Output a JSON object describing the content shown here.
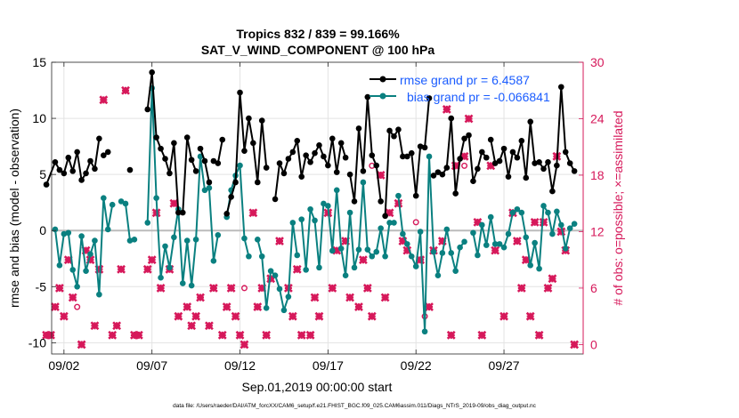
{
  "chart_data": {
    "type": "line",
    "title_line1": "Tropics 832 / 839 = 99.166%",
    "title_line2": "SAT_V_WIND_COMPONENT @ 100 hPa",
    "xlabel": "Sep.01,2019 00:00:00 start",
    "ylabel_left": "rmse and bias (model - observation)",
    "ylabel_right": "# of obs: o=possible; ×=assimilated",
    "footer": "data file: /Users/raeder/DAI/ATM_forcXX/CAM6_setup/f.e21.FHIST_BGC.f09_025.CAM6assim.011/Diags_NTrS_2019-09/obs_diag_output.nc",
    "x_range_days": [
      0.3,
      30.5
    ],
    "x_ticks": [
      {
        "day": 1,
        "label": "09/02"
      },
      {
        "day": 6,
        "label": "09/07"
      },
      {
        "day": 11,
        "label": "09/12"
      },
      {
        "day": 16,
        "label": "09/17"
      },
      {
        "day": 21,
        "label": "09/22"
      },
      {
        "day": 26,
        "label": "09/27"
      }
    ],
    "ylim_left": [
      -11,
      15
    ],
    "ylim_right": [
      -1,
      30
    ],
    "yticks_left": [
      -10,
      -5,
      0,
      5,
      10,
      15
    ],
    "yticks_right": [
      0,
      6,
      12,
      18,
      24,
      30
    ],
    "zero_line": 0,
    "legend": [
      {
        "label": "rmse grand pr = 6.4587",
        "color": "#000000"
      },
      {
        "label": "bias grand pr = -0.066841",
        "color": "#0a8080"
      }
    ],
    "colors": {
      "rmse": "#000000",
      "bias": "#0a8080",
      "obs": "#d6185a",
      "legend_text": "#1a5cff",
      "zero": "#bbbbbb"
    },
    "rmse_series": [
      {
        "name": "seg1",
        "x": [
          0.0,
          0.5,
          0.75,
          1.0,
          1.25,
          1.5,
          1.75,
          2.0,
          2.25,
          2.5,
          2.75,
          3.0
        ],
        "y": [
          4.1,
          6.1,
          5.4,
          5.1,
          6.5,
          5.3,
          7.0,
          4.5,
          5.1,
          6.2,
          5.5,
          8.2
        ]
      },
      {
        "name": "seg2",
        "x": [
          3.25,
          3.5
        ],
        "y": [
          6.7,
          7.0
        ]
      },
      {
        "name": "seg3",
        "x": [
          4.75
        ],
        "y": [
          5.4
        ]
      },
      {
        "name": "seg4",
        "x": [
          5.75,
          6.0,
          6.25,
          6.5,
          6.75,
          7.0,
          7.25,
          7.5,
          7.75,
          8.0,
          8.25,
          8.5
        ],
        "y": [
          10.8,
          14.1,
          8.3,
          7.3,
          6.4,
          5.1,
          7.8,
          1.6,
          1.6,
          8.3,
          6.3,
          5.3
        ]
      },
      {
        "name": "seg5",
        "x": [
          8.75,
          9.0,
          9.25
        ],
        "y": [
          7.3,
          6.2,
          4.3
        ]
      },
      {
        "name": "seg6",
        "x": [
          9.5,
          9.75,
          10.0
        ],
        "y": [
          6.2,
          6.0,
          8.1
        ]
      },
      {
        "name": "seg7",
        "x": [
          10.25,
          10.5,
          10.75,
          11.0,
          11.25,
          11.5,
          11.75,
          12.0,
          12.25,
          12.5
        ],
        "y": [
          1.5,
          3.0,
          4.3,
          12.3,
          7.1,
          10.0,
          7.8,
          4.3,
          9.8,
          5.6
        ]
      },
      {
        "name": "seg8",
        "x": [
          13.0,
          13.25,
          13.5,
          13.75,
          14.0,
          14.25,
          14.5,
          14.75,
          15.0,
          15.25,
          15.5,
          15.75,
          16.0,
          16.25,
          16.5,
          16.75,
          17.0
        ],
        "y": [
          2.8,
          6.0,
          5.1,
          6.4,
          7.0,
          8.0,
          4.8,
          6.7,
          6.1,
          6.9,
          7.6,
          6.6,
          5.8,
          8.2,
          5.2,
          7.8,
          6.5
        ]
      },
      {
        "name": "seg9",
        "x": [
          17.25,
          17.5,
          17.75,
          18.0,
          18.25,
          18.5,
          18.75,
          19.0
        ],
        "y": [
          5.0,
          2.6,
          9.1,
          5.3,
          11.9,
          6.7,
          5.8,
          2.6
        ]
      },
      {
        "name": "seg10",
        "x": [
          19.25,
          19.5,
          19.75,
          20.0,
          20.25
        ],
        "y": [
          1.3,
          8.9,
          8.4,
          9.0,
          6.6
        ]
      },
      {
        "name": "seg11",
        "x": [
          20.5,
          20.75,
          21.0,
          21.25,
          21.5,
          21.75
        ],
        "y": [
          6.6,
          6.9,
          3.1,
          7.5,
          7.4,
          11.8
        ]
      },
      {
        "name": "seg12",
        "x": [
          22.0,
          22.25,
          22.5,
          22.75,
          23.0,
          23.25,
          23.5,
          23.75,
          24.0,
          24.25,
          24.5,
          24.75,
          25.0
        ],
        "y": [
          4.9,
          5.2,
          5.0,
          5.6,
          10.0,
          3.3,
          6.4,
          8.2,
          8.5,
          4.4,
          5.5,
          7.0,
          6.5
        ]
      },
      {
        "name": "seg13",
        "x": [
          25.25,
          25.5,
          25.75,
          26.0,
          26.25,
          26.5,
          26.75,
          27.0,
          27.25,
          27.5,
          27.75,
          28.0,
          28.25,
          28.5,
          28.75,
          29.0,
          29.25,
          29.5,
          29.75,
          30.0
        ],
        "y": [
          8.1,
          6.0,
          6.2,
          7.3,
          4.8,
          7.0,
          6.5,
          8.0,
          4.7,
          9.7,
          6.0,
          6.1,
          5.5,
          6.1,
          3.5,
          5.8,
          12.8,
          7.0,
          6.0,
          5.3
        ]
      }
    ],
    "bias_series": [
      {
        "name": "seg1",
        "x": [
          0.0
        ],
        "y": [
          4.1
        ]
      },
      {
        "name": "seg2",
        "x": [
          0.5,
          0.75,
          1.0,
          1.25,
          1.5,
          1.75,
          2.0,
          2.25,
          2.5,
          2.75,
          3.0,
          3.25,
          3.5,
          3.75
        ],
        "y": [
          0.1,
          -3.1,
          -0.3,
          -0.2,
          -3.5,
          -5.0,
          -0.5,
          -3.6,
          -2.1,
          -0.9,
          -5.7,
          2.9,
          0.1,
          2.3
        ]
      },
      {
        "name": "seg3",
        "x": [
          4.25,
          4.5,
          4.75,
          5.0
        ],
        "y": [
          2.6,
          2.4,
          -0.9,
          -0.8
        ]
      },
      {
        "name": "seg4",
        "x": [
          5.75,
          6.0,
          6.25,
          6.5,
          6.75,
          7.0,
          7.25,
          7.5,
          7.75,
          8.0,
          8.25,
          8.5,
          8.75,
          9.0,
          9.25,
          9.5,
          9.75
        ],
        "y": [
          0.7,
          12.7,
          2.9,
          -4.2,
          -1.4,
          -3.3,
          -0.6,
          1.9,
          -4.7,
          -0.9,
          -4.9,
          -0.8,
          6.6,
          3.6,
          3.8,
          -2.7,
          -0.4
        ]
      },
      {
        "name": "seg4b",
        "x": [
          10.25,
          10.5,
          10.75,
          11.0,
          11.25,
          11.5
        ],
        "y": [
          1.2,
          3.6,
          4.9,
          5.8,
          -0.7,
          -2.3
        ]
      },
      {
        "name": "seg5",
        "x": [
          12.0,
          12.25,
          12.5,
          12.75,
          13.0,
          13.25,
          13.5,
          13.75,
          14.0,
          14.25
        ],
        "y": [
          -0.8,
          -2.3,
          -6.9,
          -3.6,
          -4.0,
          -5.2,
          -7.1,
          -5.9,
          0.7,
          -2.2
        ]
      },
      {
        "name": "seg6",
        "x": [
          14.5,
          14.75,
          15.0,
          15.25,
          15.5,
          15.75,
          16.0,
          16.25,
          16.5,
          16.75,
          17.0,
          17.25,
          17.5,
          17.75,
          18.0,
          18.25,
          18.5,
          18.75,
          19.0,
          19.25,
          19.5,
          19.75
        ],
        "y": [
          1.0,
          -3.5,
          1.9,
          0.9,
          -3.3,
          2.4,
          2.2,
          -1.8,
          3.6,
          -1.6,
          -4.0,
          1.6,
          -3.3,
          -1.7,
          4.3,
          -1.7,
          -2.3,
          -1.9,
          0.2,
          -2.3,
          0.7,
          0.7
        ]
      },
      {
        "name": "seg7",
        "x": [
          20.0,
          20.25,
          20.5,
          20.75,
          21.0,
          21.25,
          21.5,
          21.75,
          22.0,
          22.25,
          22.5,
          22.75,
          23.0,
          23.25,
          23.5,
          23.75
        ],
        "y": [
          3.1,
          -0.3,
          -1.2,
          -2.3,
          -3.2,
          -0.1,
          -9.0,
          6.6,
          -1.9,
          -4.0,
          -2.0,
          0.1,
          -2.0,
          -3.6,
          -1.5,
          -1.0
        ]
      },
      {
        "name": "seg8",
        "x": [
          24.25,
          24.5,
          24.75,
          25.0,
          25.25,
          25.5,
          25.75,
          26.0,
          26.25,
          26.5,
          26.75,
          27.0,
          27.25,
          27.5,
          27.75,
          28.0,
          28.25,
          28.5,
          28.75,
          29.0,
          29.25,
          29.5,
          29.75,
          30.0
        ],
        "y": [
          -0.2,
          -2.2,
          0.5,
          -1.3,
          1.2,
          -1.2,
          -1.2,
          -1.5,
          -0.3,
          1.6,
          1.9,
          1.6,
          -0.6,
          -3.1,
          -1.1,
          -3.4,
          2.2,
          1.6,
          -0.3,
          1.7,
          0.5,
          -1.6,
          0.2,
          0.6
        ]
      }
    ],
    "obs_assimilated": {
      "x": [
        0.0,
        0.25,
        0.5,
        0.75,
        1.0,
        1.25,
        1.5,
        2.0,
        2.25,
        2.5,
        2.75,
        3.0,
        3.25,
        3.75,
        4.0,
        4.25,
        4.5,
        5.0,
        5.25,
        5.75,
        6.0,
        6.25,
        6.5,
        7.0,
        7.25,
        7.5,
        8.0,
        8.25,
        8.5,
        8.75,
        9.25,
        9.5,
        10.0,
        10.25,
        10.5,
        10.75,
        11.0,
        11.25,
        11.75,
        12.0,
        12.25,
        12.5,
        12.75,
        13.25,
        13.75,
        14.0,
        14.25,
        14.5,
        15.0,
        15.25,
        15.5,
        16.0,
        16.25,
        16.5,
        17.0,
        17.25,
        17.75,
        18.0,
        18.25,
        18.5,
        19.0,
        19.25,
        19.5,
        20.0,
        20.25,
        20.5,
        21.25,
        21.75,
        22.0,
        22.5,
        22.75,
        23.0,
        23.25,
        23.75,
        24.0,
        24.5,
        24.75,
        25.25,
        25.5,
        26.0,
        26.5,
        26.75,
        27.0,
        27.25,
        27.5,
        27.75,
        28.0,
        28.25,
        28.5,
        28.75,
        29.0,
        29.25,
        29.5,
        30.0
      ],
      "y": [
        1,
        1,
        4,
        6,
        3,
        9,
        5,
        0,
        10,
        9,
        2,
        8,
        26,
        1,
        2,
        8,
        27,
        1,
        1,
        8,
        9,
        14,
        6,
        8,
        15,
        3,
        4,
        2,
        3,
        5,
        2,
        6,
        1,
        4,
        6,
        3,
        1,
        0,
        14,
        4,
        6,
        1,
        7,
        11,
        6,
        3,
        8,
        1,
        1,
        5,
        3,
        14,
        6,
        10,
        11,
        5,
        4,
        9,
        6,
        3,
        18,
        5,
        14,
        15,
        11,
        10,
        9,
        4,
        10,
        11,
        25,
        1,
        19,
        20,
        24,
        13,
        1,
        19,
        10,
        3,
        14,
        11,
        6,
        9,
        3,
        13,
        1,
        13,
        6,
        7,
        20,
        12,
        10,
        0
      ]
    },
    "obs_possible": {
      "x": [
        1.75,
        11.25,
        18.5,
        21.0,
        21.25,
        21.5,
        23.75
      ],
      "y": [
        4,
        6,
        19,
        13,
        9,
        3,
        19
      ]
    }
  }
}
